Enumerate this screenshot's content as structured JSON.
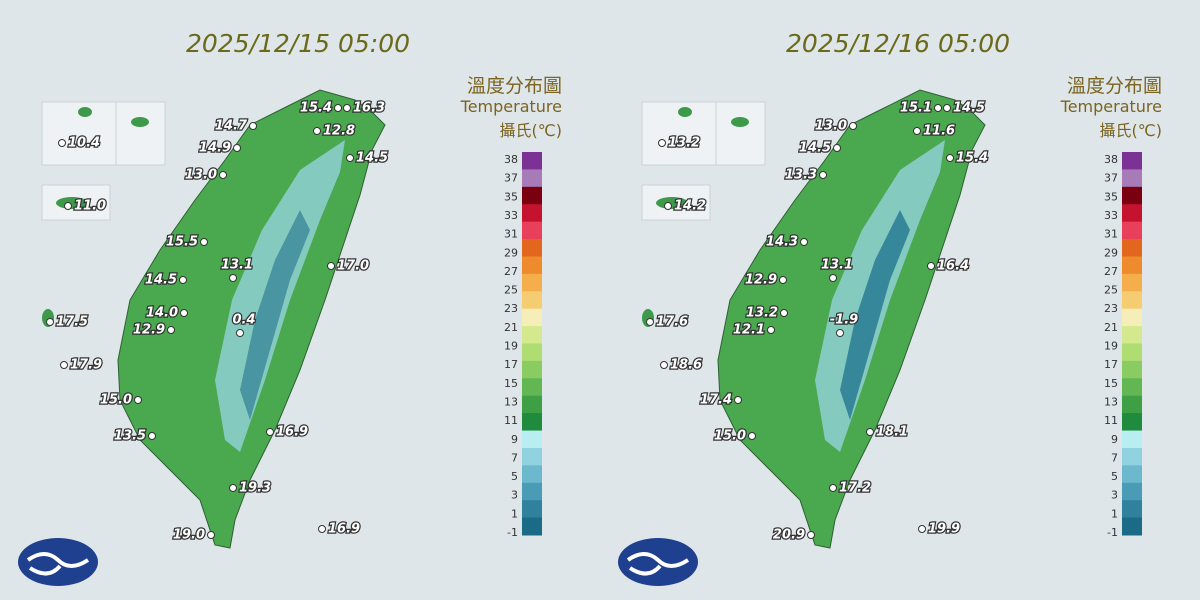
{
  "panels": [
    {
      "timestamp": "2025/12/15 05:00",
      "stations": [
        "14.7",
        "15.4",
        "16.3",
        "12.8",
        "14.9",
        "14.5",
        "13.0",
        "15.5",
        "17.0",
        "13.1",
        "14.5",
        "14.0",
        "12.9",
        "0.4",
        "17.5",
        "17.9",
        "15.0",
        "13.5",
        "16.9",
        "19.3",
        "19.0",
        "16.9",
        "10.4",
        "11.0"
      ]
    },
    {
      "timestamp": "2025/12/16 05:00",
      "stations": [
        "13.0",
        "15.1",
        "14.5",
        "11.6",
        "14.5",
        "15.4",
        "13.3",
        "14.3",
        "16.4",
        "13.1",
        "12.9",
        "13.2",
        "12.1",
        "-1.9",
        "17.6",
        "18.6",
        "17.4",
        "15.0",
        "18.1",
        "17.2",
        "20.9",
        "19.9",
        "13.2",
        "14.2"
      ]
    }
  ],
  "legend": {
    "title": "溫度分布圖",
    "subtitle": "Temperature",
    "unit": "攝氏(℃)",
    "labels": [
      "38",
      "37",
      "35",
      "33",
      "31",
      "29",
      "27",
      "25",
      "23",
      "21",
      "19",
      "17",
      "15",
      "13",
      "11",
      "9",
      "7",
      "5",
      "3",
      "1",
      "-1"
    ],
    "colors": [
      "#7b3294",
      "#a77bb8",
      "#7a0010",
      "#c4122f",
      "#e8405a",
      "#e2661e",
      "#ee8b2c",
      "#f4ae4c",
      "#f6cc72",
      "#f5eeb8",
      "#d4e98e",
      "#b0dc74",
      "#8acb62",
      "#62b752",
      "#3e9f44",
      "#1e8c3c",
      "#b8eef2",
      "#90d2e0",
      "#6cb8cc",
      "#4a9cb6",
      "#2f819e",
      "#1b6a86"
    ]
  }
}
